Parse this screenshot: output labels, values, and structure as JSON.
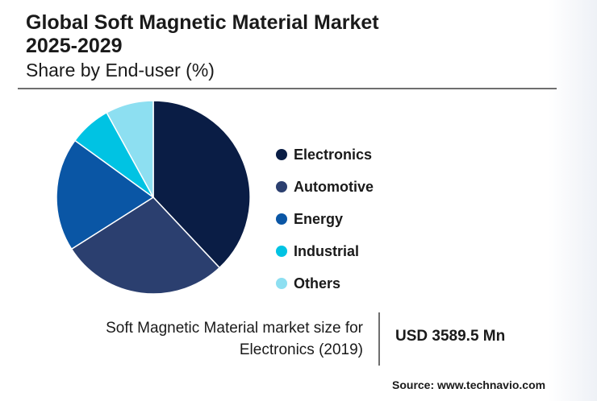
{
  "header": {
    "title_line1": "Global Soft Magnetic Material Market",
    "title_line2": "2025-2029",
    "subtitle": "Share by End-user (%)"
  },
  "chart_data": {
    "type": "pie",
    "title": "Global Soft Magnetic Material Market 2025-2029",
    "subtitle": "Share by End-user (%)",
    "categories": [
      "Electronics",
      "Automotive",
      "Energy",
      "Industrial",
      "Others"
    ],
    "values": [
      38,
      28,
      19,
      7,
      8
    ],
    "colors": [
      "#0a1d45",
      "#2b3f6f",
      "#0a56a5",
      "#00c3e3",
      "#8ddff1"
    ],
    "legend_position": "right",
    "start_angle": "12 o'clock",
    "direction": "clockwise"
  },
  "callout": {
    "text": "Soft Magnetic Material market size for Electronics (2019)",
    "value": "USD 3589.5 Mn"
  },
  "source": "Source: www.technavio.com"
}
